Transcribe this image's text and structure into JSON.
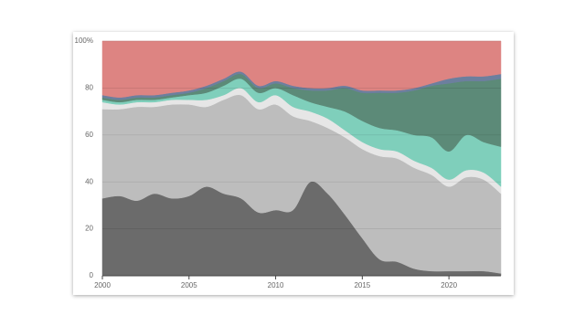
{
  "chart_data": {
    "type": "stacked_area",
    "x": [
      2000,
      2001,
      2002,
      2003,
      2004,
      2005,
      2006,
      2007,
      2008,
      2009,
      2010,
      2011,
      2012,
      2013,
      2014,
      2015,
      2016,
      2017,
      2018,
      2019,
      2020,
      2021,
      2022,
      2023
    ],
    "series": [
      {
        "color": "#6b6b6b",
        "values": [
          33,
          34,
          32,
          35,
          33,
          34,
          38,
          35,
          33,
          27,
          28,
          28,
          40,
          35,
          26,
          16,
          7,
          6,
          3,
          2,
          2,
          2,
          2,
          1
        ]
      },
      {
        "color": "#bdbdbd",
        "values": [
          38,
          37,
          40,
          37,
          40,
          39,
          34,
          40,
          44,
          44,
          45,
          40,
          26,
          28,
          33,
          38,
          44,
          44,
          43,
          41,
          36,
          40,
          39,
          34
        ]
      },
      {
        "color": "#e6e6e6",
        "values": [
          3,
          2,
          2,
          2,
          2,
          2,
          3,
          2,
          3,
          3,
          4,
          4,
          4,
          4,
          3,
          3,
          3,
          3,
          3,
          3,
          3,
          3,
          3,
          3
        ]
      },
      {
        "color": "#7fcfbb",
        "values": [
          1,
          1,
          1,
          1,
          1,
          2,
          3,
          4,
          4,
          4,
          3,
          5,
          4,
          5,
          8,
          9,
          9,
          9,
          11,
          13,
          12,
          15,
          13,
          17
        ]
      },
      {
        "color": "#5c8a78",
        "values": [
          1,
          1,
          1,
          1,
          1,
          1,
          2,
          2,
          2,
          2,
          2,
          3,
          5,
          7,
          10,
          12,
          15,
          16,
          19,
          22,
          29,
          23,
          26,
          29
        ]
      },
      {
        "color": "#6c7f9e",
        "values": [
          1,
          1,
          1,
          1,
          1,
          1,
          1,
          1,
          1,
          1,
          1,
          1,
          1,
          1,
          1,
          1,
          1,
          1,
          1,
          1,
          2,
          2,
          2,
          2
        ]
      },
      {
        "color": "#dd8482",
        "values": [
          23,
          24,
          23,
          23,
          22,
          21,
          19,
          16,
          13,
          19,
          17,
          19,
          20,
          20,
          19,
          21,
          21,
          21,
          20,
          18,
          16,
          15,
          15,
          14
        ]
      }
    ],
    "xlim": [
      2000,
      2023
    ],
    "xticks": [
      2000,
      2005,
      2010,
      2015,
      2020
    ],
    "ylim": [
      0,
      100
    ],
    "yticks": [
      0,
      20,
      40,
      60,
      80,
      {
        "value": 100,
        "label": "100%"
      }
    ],
    "grid": true
  }
}
